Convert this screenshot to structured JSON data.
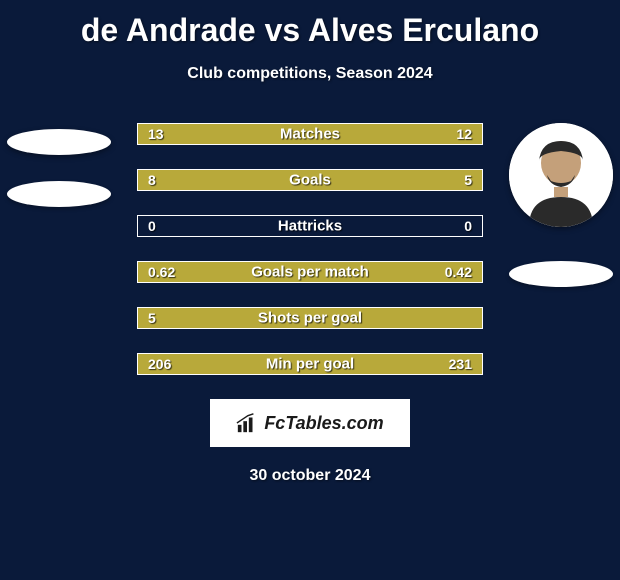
{
  "title": "de Andrade vs Alves Erculano",
  "subtitle": "Club competitions, Season 2024",
  "date": "30 october 2024",
  "logo_text": "FcTables.com",
  "colors": {
    "background": "#0a1a3a",
    "bar_left": "#b8a93a",
    "bar_right": "#b8a93a",
    "border": "#ffffff",
    "text": "#ffffff"
  },
  "player_left": {
    "has_photo": false
  },
  "player_right": {
    "has_photo": true
  },
  "stats": [
    {
      "label": "Matches",
      "left_val": "13",
      "right_val": "12",
      "left_pct": 52,
      "right_pct": 48
    },
    {
      "label": "Goals",
      "left_val": "8",
      "right_val": "5",
      "left_pct": 61,
      "right_pct": 39
    },
    {
      "label": "Hattricks",
      "left_val": "0",
      "right_val": "0",
      "left_pct": 0,
      "right_pct": 0
    },
    {
      "label": "Goals per match",
      "left_val": "0.62",
      "right_val": "0.42",
      "left_pct": 60,
      "right_pct": 40
    },
    {
      "label": "Shots per goal",
      "left_val": "5",
      "right_val": "",
      "left_pct": 100,
      "right_pct": 0
    },
    {
      "label": "Min per goal",
      "left_val": "206",
      "right_val": "231",
      "left_pct": 47,
      "right_pct": 53
    }
  ]
}
